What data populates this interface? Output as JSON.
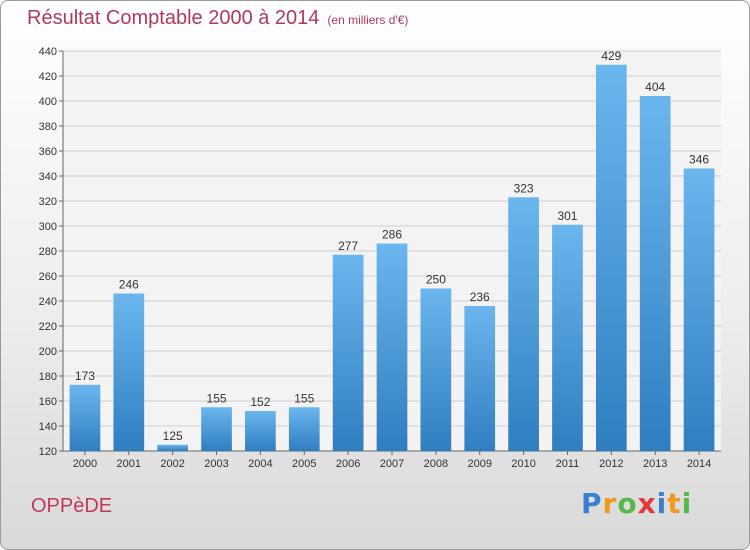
{
  "header": {
    "title": "Résultat Comptable 2000 à 2014",
    "subtitle": "(en milliers d'€)"
  },
  "footer": {
    "place": "OPPèDE",
    "logo_letters": [
      "P",
      "r",
      "o",
      "x",
      "i",
      "t",
      "i"
    ],
    "logo_colors": [
      "#3a7fd0",
      "#f09a20",
      "#58b848",
      "#e23a3a",
      "#3a7fd0",
      "#f09a20",
      "#58b848"
    ]
  },
  "colors": {
    "bar_top": "#6bb6ee",
    "bar_bottom": "#2f7ec0",
    "grid": "#cfcfcf",
    "title": "#b03a5b"
  },
  "chart_data": {
    "type": "bar",
    "title": "Résultat Comptable 2000 à 2014",
    "subtitle": "(en milliers d'€)",
    "categories": [
      "2000",
      "2001",
      "2002",
      "2003",
      "2004",
      "2005",
      "2006",
      "2007",
      "2008",
      "2009",
      "2010",
      "2011",
      "2012",
      "2013",
      "2014"
    ],
    "values": [
      173,
      246,
      125,
      155,
      152,
      155,
      277,
      286,
      250,
      236,
      323,
      301,
      429,
      404,
      346
    ],
    "ylim": [
      120,
      440
    ],
    "yticks": [
      120,
      140,
      160,
      180,
      200,
      220,
      240,
      260,
      280,
      300,
      320,
      340,
      360,
      380,
      400,
      420,
      440
    ],
    "grid": true,
    "xlabel": "",
    "ylabel": ""
  }
}
